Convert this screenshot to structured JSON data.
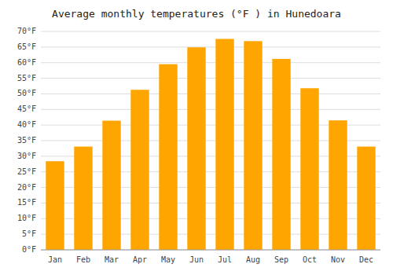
{
  "chart_data": {
    "type": "bar",
    "title": "Average monthly temperatures (°F ) in Hunedoara",
    "categories": [
      "Jan",
      "Feb",
      "Mar",
      "Apr",
      "May",
      "Jun",
      "Jul",
      "Aug",
      "Sep",
      "Oct",
      "Nov",
      "Dec"
    ],
    "values": [
      28.4,
      33.1,
      41.4,
      51.3,
      59.5,
      64.9,
      67.6,
      66.9,
      61.2,
      51.8,
      41.5,
      33.1
    ],
    "color": "#FFA500",
    "ylim": [
      0,
      70
    ],
    "yticks": [
      {
        "value": 0,
        "label": "0°F"
      },
      {
        "value": 5,
        "label": "5°F"
      },
      {
        "value": 10,
        "label": "10°F"
      },
      {
        "value": 15,
        "label": "15°F"
      },
      {
        "value": 20,
        "label": "20°F"
      },
      {
        "value": 25,
        "label": "25°F"
      },
      {
        "value": 30,
        "label": "30°F"
      },
      {
        "value": 35,
        "label": "35°F"
      },
      {
        "value": 40,
        "label": "40°F"
      },
      {
        "value": 45,
        "label": "45°F"
      },
      {
        "value": 50,
        "label": "50°F"
      },
      {
        "value": 55,
        "label": "55°F"
      },
      {
        "value": 60,
        "label": "60°F"
      },
      {
        "value": 65,
        "label": "65°F"
      },
      {
        "value": 70,
        "label": "70°F"
      }
    ],
    "grid": true
  }
}
